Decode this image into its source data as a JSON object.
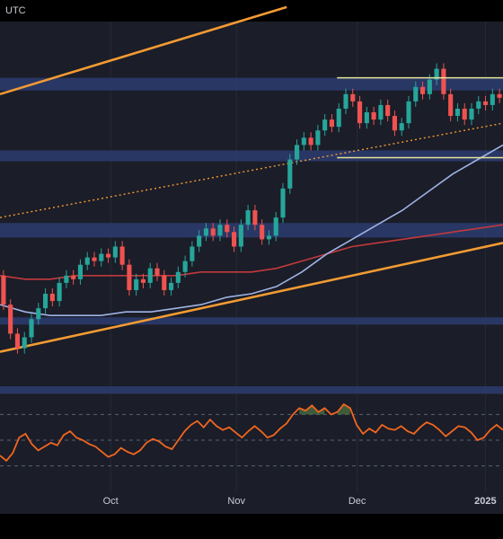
{
  "header": {
    "timezone": "UTC"
  },
  "colors": {
    "background": "#1b1d28",
    "separator": "#000000",
    "grid": "#262a38",
    "zone": "#2b3b6b",
    "channel": "#f39b33",
    "ma_red": "#c23a3c",
    "ma_blue": "#9fb3e6",
    "candle_up": "#26a69a",
    "candle_down": "#ef5350",
    "rsi_line": "#f2661f",
    "rsi_fill": "#4a6b3f",
    "axis_text": "#c9ccd6",
    "highlight_box": "#e6e39a"
  },
  "chart_data": [
    {
      "type": "line",
      "panel": "price",
      "title": "",
      "xlabel": "",
      "ylabel": "",
      "x_ticks": [
        "Oct",
        "Nov",
        "Dec",
        "2025"
      ],
      "grid": true,
      "zones": [
        {
          "y0": 0.81,
          "y1": 0.845
        },
        {
          "y0": 0.615,
          "y1": 0.645
        },
        {
          "y0": 0.405,
          "y1": 0.445
        },
        {
          "y0": 0.165,
          "y1": 0.185
        },
        {
          "y0": -0.025,
          "y1": -0.005
        }
      ],
      "trendlines": [
        {
          "name": "channel-upper",
          "style": "solid",
          "x0": 0.0,
          "y0": 0.8,
          "x1": 0.57,
          "y1": 1.04
        },
        {
          "name": "channel-lower",
          "style": "solid",
          "x0": 0.0,
          "y0": 0.09,
          "x1": 1.0,
          "y1": 0.39
        },
        {
          "name": "dotted-trend",
          "style": "dotted",
          "x0": 0.0,
          "y0": 0.46,
          "x1": 1.0,
          "y1": 0.72
        }
      ],
      "highlight_box": {
        "x0": 0.67,
        "x1": 1.0,
        "y0": 0.625,
        "y1": 0.845
      },
      "series": [
        {
          "values_x": [
            0.0,
            0.05,
            0.1,
            0.15,
            0.2,
            0.25,
            0.3,
            0.35,
            0.4,
            0.45,
            0.5,
            0.55,
            0.6,
            0.65,
            0.7,
            0.75,
            0.8,
            0.85,
            0.9,
            0.95,
            1.0
          ],
          "values_y": [
            0.3,
            0.29,
            0.29,
            0.3,
            0.3,
            0.3,
            0.3,
            0.3,
            0.31,
            0.31,
            0.31,
            0.32,
            0.34,
            0.36,
            0.38,
            0.39,
            0.4,
            0.41,
            0.42,
            0.43,
            0.44
          ],
          "color_key": "ma_red"
        },
        {
          "values_x": [
            0.0,
            0.05,
            0.1,
            0.15,
            0.2,
            0.25,
            0.3,
            0.35,
            0.4,
            0.45,
            0.5,
            0.55,
            0.6,
            0.65,
            0.7,
            0.75,
            0.8,
            0.85,
            0.9,
            0.95,
            1.0
          ],
          "values_y": [
            0.22,
            0.2,
            0.19,
            0.19,
            0.19,
            0.2,
            0.2,
            0.21,
            0.22,
            0.24,
            0.25,
            0.27,
            0.31,
            0.36,
            0.4,
            0.44,
            0.48,
            0.53,
            0.58,
            0.62,
            0.66
          ],
          "color_key": "ma_blue"
        }
      ],
      "candles": [
        [
          0.3,
          0.22
        ],
        [
          0.22,
          0.14
        ],
        [
          0.14,
          0.1
        ],
        [
          0.1,
          0.13
        ],
        [
          0.13,
          0.18
        ],
        [
          0.18,
          0.21
        ],
        [
          0.21,
          0.25
        ],
        [
          0.25,
          0.23
        ],
        [
          0.23,
          0.28
        ],
        [
          0.28,
          0.3
        ],
        [
          0.3,
          0.29
        ],
        [
          0.29,
          0.33
        ],
        [
          0.33,
          0.35
        ],
        [
          0.35,
          0.34
        ],
        [
          0.34,
          0.36
        ],
        [
          0.36,
          0.35
        ],
        [
          0.35,
          0.38
        ],
        [
          0.38,
          0.33
        ],
        [
          0.33,
          0.26
        ],
        [
          0.26,
          0.29
        ],
        [
          0.29,
          0.28
        ],
        [
          0.28,
          0.32
        ],
        [
          0.32,
          0.3
        ],
        [
          0.3,
          0.26
        ],
        [
          0.26,
          0.28
        ],
        [
          0.28,
          0.31
        ],
        [
          0.31,
          0.34
        ],
        [
          0.34,
          0.38
        ],
        [
          0.38,
          0.41
        ],
        [
          0.41,
          0.43
        ],
        [
          0.43,
          0.41
        ],
        [
          0.41,
          0.44
        ],
        [
          0.44,
          0.42
        ],
        [
          0.42,
          0.38
        ],
        [
          0.38,
          0.44
        ],
        [
          0.44,
          0.48
        ],
        [
          0.48,
          0.44
        ],
        [
          0.44,
          0.4
        ],
        [
          0.4,
          0.41
        ],
        [
          0.41,
          0.46
        ],
        [
          0.46,
          0.54
        ],
        [
          0.54,
          0.62
        ],
        [
          0.62,
          0.66
        ],
        [
          0.66,
          0.68
        ],
        [
          0.68,
          0.66
        ],
        [
          0.66,
          0.7
        ],
        [
          0.7,
          0.73
        ],
        [
          0.73,
          0.71
        ],
        [
          0.71,
          0.76
        ],
        [
          0.76,
          0.8
        ],
        [
          0.8,
          0.78
        ],
        [
          0.78,
          0.72
        ],
        [
          0.72,
          0.75
        ],
        [
          0.75,
          0.73
        ],
        [
          0.73,
          0.77
        ],
        [
          0.77,
          0.74
        ],
        [
          0.74,
          0.7
        ],
        [
          0.7,
          0.72
        ],
        [
          0.72,
          0.78
        ],
        [
          0.78,
          0.82
        ],
        [
          0.82,
          0.8
        ],
        [
          0.8,
          0.84
        ],
        [
          0.84,
          0.87
        ],
        [
          0.87,
          0.8
        ],
        [
          0.8,
          0.74
        ],
        [
          0.74,
          0.76
        ],
        [
          0.76,
          0.73
        ],
        [
          0.73,
          0.76
        ],
        [
          0.76,
          0.78
        ],
        [
          0.78,
          0.77
        ],
        [
          0.77,
          0.8
        ],
        [
          0.8,
          0.79
        ]
      ]
    },
    {
      "type": "line",
      "panel": "oscillator",
      "title": "",
      "xlabel": "",
      "ylabel": "",
      "levels": [
        70,
        50,
        30
      ],
      "overbought_fill_above": 70,
      "values": [
        38,
        34,
        40,
        52,
        55,
        47,
        42,
        45,
        48,
        46,
        54,
        57,
        52,
        50,
        47,
        45,
        41,
        37,
        39,
        44,
        41,
        39,
        42,
        48,
        51,
        49,
        45,
        43,
        50,
        57,
        62,
        65,
        60,
        66,
        61,
        58,
        60,
        56,
        52,
        57,
        61,
        57,
        52,
        54,
        59,
        63,
        70,
        75,
        73,
        77,
        72,
        75,
        70,
        72,
        78,
        75,
        62,
        55,
        59,
        56,
        62,
        59,
        58,
        61,
        57,
        55,
        60,
        64,
        62,
        58,
        53,
        57,
        61,
        60,
        56,
        50,
        52,
        58,
        62,
        58
      ]
    }
  ]
}
